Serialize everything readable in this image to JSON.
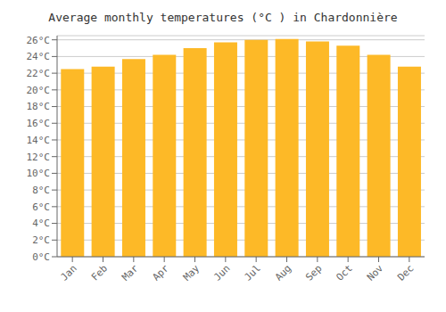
{
  "chart_data": {
    "type": "bar",
    "title": "Average monthly temperatures (°C ) in Chardonnière",
    "categories": [
      "Jan",
      "Feb",
      "Mar",
      "Apr",
      "May",
      "Jun",
      "Jul",
      "Aug",
      "Sep",
      "Oct",
      "Nov",
      "Dec"
    ],
    "values": [
      22.5,
      22.8,
      23.7,
      24.2,
      25.0,
      25.7,
      26.0,
      26.1,
      25.8,
      25.3,
      24.2,
      22.8
    ],
    "color": "#FDB927",
    "ylim": [
      0,
      26.5
    ],
    "yticks": [
      {
        "value": 0,
        "label": "0°C"
      },
      {
        "value": 2,
        "label": "2°C"
      },
      {
        "value": 4,
        "label": "4°C"
      },
      {
        "value": 6,
        "label": "6°C"
      },
      {
        "value": 8,
        "label": "8°C"
      },
      {
        "value": 10,
        "label": "10°C"
      },
      {
        "value": 12,
        "label": "12°C"
      },
      {
        "value": 14,
        "label": "14°C"
      },
      {
        "value": 16,
        "label": "16°C"
      },
      {
        "value": 18,
        "label": "18°C"
      },
      {
        "value": 20,
        "label": "20°C"
      },
      {
        "value": 22,
        "label": "22°C"
      },
      {
        "value": 24,
        "label": "24°C"
      },
      {
        "value": 26,
        "label": "26°C"
      }
    ],
    "grid": true
  }
}
